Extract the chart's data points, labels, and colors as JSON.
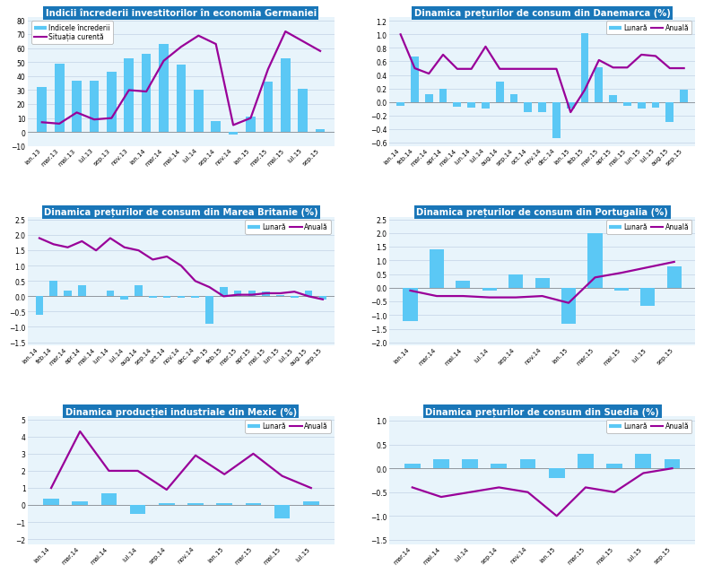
{
  "chart1": {
    "title": "Indicii încrederii investitorilor în economia Germaniei",
    "labels": [
      "ian.13",
      "mar.13",
      "mai.13",
      "iul.13",
      "sep.13",
      "nov.13",
      "ian.14",
      "mar.14",
      "mai.14",
      "iul.14",
      "sep.14",
      "nov.14",
      "ian.15",
      "mar.15",
      "mai.15",
      "iul.15",
      "sep.15"
    ],
    "bar_values": [
      32,
      49,
      37,
      37,
      43,
      53,
      56,
      63,
      48,
      30,
      8,
      -2,
      11,
      36,
      53,
      31,
      2
    ],
    "line_values": [
      7,
      6,
      14,
      9,
      10,
      30,
      29,
      51,
      61,
      69,
      63,
      5,
      10,
      45,
      72,
      65,
      58
    ],
    "yticks": [
      -10,
      0,
      10,
      20,
      30,
      40,
      50,
      60,
      70,
      80
    ],
    "ylim": [
      -10,
      82
    ],
    "legend1": "Indicele încrederii",
    "legend2": "Situația curentă"
  },
  "chart2": {
    "title": "Dinamica prețurilor de consum din Danemarca (%)",
    "labels": [
      "ian.14",
      "feb.14",
      "mar.14",
      "apr.14",
      "mai.14",
      "iun.14",
      "iul.14",
      "aug.14",
      "sep.14",
      "oct.14",
      "nov.14",
      "dec.14",
      "ian.15",
      "feb.15",
      "mar.15",
      "apr.15",
      "mai.15",
      "iun.15",
      "iul.15",
      "aug.15",
      "sep.15"
    ],
    "bar_values": [
      -0.05,
      0.67,
      0.12,
      0.2,
      -0.07,
      -0.08,
      -0.1,
      0.3,
      0.12,
      -0.15,
      -0.15,
      -0.53,
      -0.1,
      1.02,
      0.52,
      0.1,
      -0.05,
      -0.1,
      -0.08,
      -0.3,
      0.18
    ],
    "line_values": [
      1.0,
      0.5,
      0.42,
      0.7,
      0.49,
      0.49,
      0.82,
      0.49,
      0.49,
      0.49,
      0.49,
      0.49,
      -0.15,
      0.18,
      0.62,
      0.51,
      0.51,
      0.7,
      0.68,
      0.5,
      0.5
    ],
    "yticks": [
      -0.6,
      -0.4,
      -0.2,
      0,
      0.2,
      0.4,
      0.6,
      0.8,
      1.0,
      1.2
    ],
    "ylim": [
      -0.65,
      1.25
    ],
    "legend1": "Lunară",
    "legend2": "Anuală"
  },
  "chart3": {
    "title": "Dinamica prețurilor de consum din Marea Britanie (%)",
    "labels": [
      "ian.14",
      "feb.14",
      "mar.14",
      "apr.14",
      "mai.14",
      "iun.14",
      "iul.14",
      "aug.14",
      "sep.14",
      "oct.14",
      "nov.14",
      "dec.14",
      "ian.15",
      "feb.15",
      "mar.15",
      "apr.15",
      "mai.15",
      "iun.15",
      "iul.15",
      "aug.15",
      "sep.15"
    ],
    "bar_values": [
      -0.6,
      0.5,
      0.2,
      0.35,
      0.0,
      0.2,
      -0.1,
      0.35,
      -0.05,
      -0.05,
      -0.05,
      -0.05,
      -0.9,
      0.3,
      0.2,
      0.2,
      0.15,
      0.05,
      -0.05,
      0.2,
      -0.1
    ],
    "line_values": [
      1.9,
      1.7,
      1.6,
      1.8,
      1.5,
      1.9,
      1.6,
      1.5,
      1.2,
      1.3,
      1.0,
      0.5,
      0.3,
      0.0,
      0.05,
      0.05,
      0.1,
      0.1,
      0.15,
      0.0,
      -0.1
    ],
    "yticks": [
      -1.5,
      -1.0,
      -0.5,
      0,
      0.5,
      1.0,
      1.5,
      2.0,
      2.5
    ],
    "ylim": [
      -1.6,
      2.6
    ],
    "legend1": "Lunară",
    "legend2": "Anuală"
  },
  "chart4": {
    "title": "Dinamica prețurilor de consum din Portugalia (%)",
    "labels": [
      "ian.14",
      "mar.14",
      "mai.14",
      "iul.14",
      "sep.14",
      "nov.14",
      "ian.15",
      "mar.15",
      "mai.15",
      "iul.15",
      "sep.15"
    ],
    "bar_values": [
      -1.2,
      1.4,
      0.25,
      -0.1,
      0.5,
      0.35,
      -1.3,
      2.0,
      -0.1,
      -0.65,
      0.8
    ],
    "line_values": [
      -0.1,
      -0.3,
      -0.3,
      -0.35,
      -0.35,
      -0.3,
      -0.55,
      0.38,
      0.55,
      0.75,
      0.95
    ],
    "yticks": [
      -2.0,
      -1.5,
      -1.0,
      -0.5,
      0,
      0.5,
      1.0,
      1.5,
      2.0,
      2.5
    ],
    "ylim": [
      -2.1,
      2.6
    ],
    "legend1": "Lunară",
    "legend2": "Anuală"
  },
  "chart5": {
    "title": "Dinamica producției industriale din Mexic (%)",
    "labels": [
      "ian.14",
      "mar.14",
      "mai.14",
      "iul.14",
      "sep.14",
      "nov.14",
      "ian.15",
      "mar.15",
      "mai.15",
      "iul.15"
    ],
    "bar_values": [
      0.35,
      0.2,
      0.7,
      -0.5,
      0.1,
      0.1,
      0.1,
      0.1,
      -0.8,
      0.2
    ],
    "line_values": [
      1.0,
      4.3,
      2.0,
      2.0,
      0.9,
      2.9,
      1.8,
      3.0,
      1.7,
      1.0
    ],
    "yticks": [
      -2,
      -1,
      0,
      1,
      2,
      3,
      4,
      5
    ],
    "ylim": [
      -2.3,
      5.2
    ],
    "legend1": "Lunară",
    "legend2": "Anuală"
  },
  "chart6": {
    "title": "Dinamica prețurilor de consum din Suedia (%)",
    "labels": [
      "mar.14",
      "mai.14",
      "iul.14",
      "sep.14",
      "nov.14",
      "ian.15",
      "mar.15",
      "mai.15",
      "iul.15",
      "sep.15"
    ],
    "bar_values": [
      0.1,
      0.2,
      0.2,
      0.1,
      0.2,
      -0.2,
      0.3,
      0.1,
      0.3,
      0.2
    ],
    "line_values": [
      -0.4,
      -0.6,
      -0.5,
      -0.4,
      -0.5,
      -1.0,
      -0.4,
      -0.5,
      -0.1,
      0.0
    ],
    "yticks": [
      -1.5,
      -1.0,
      -0.5,
      0,
      0.5,
      1.0
    ],
    "ylim": [
      -1.6,
      1.1
    ],
    "legend1": "Lunară",
    "legend2": "Anuală"
  },
  "bar_color": "#5BC8F5",
  "line_color": "#990099",
  "title_bg": "#1976B8",
  "title_fg": "#FFFFFF",
  "plot_bg": "#E8F4FB",
  "grid_color": "#C8D8E8",
  "border_color": "#888888"
}
